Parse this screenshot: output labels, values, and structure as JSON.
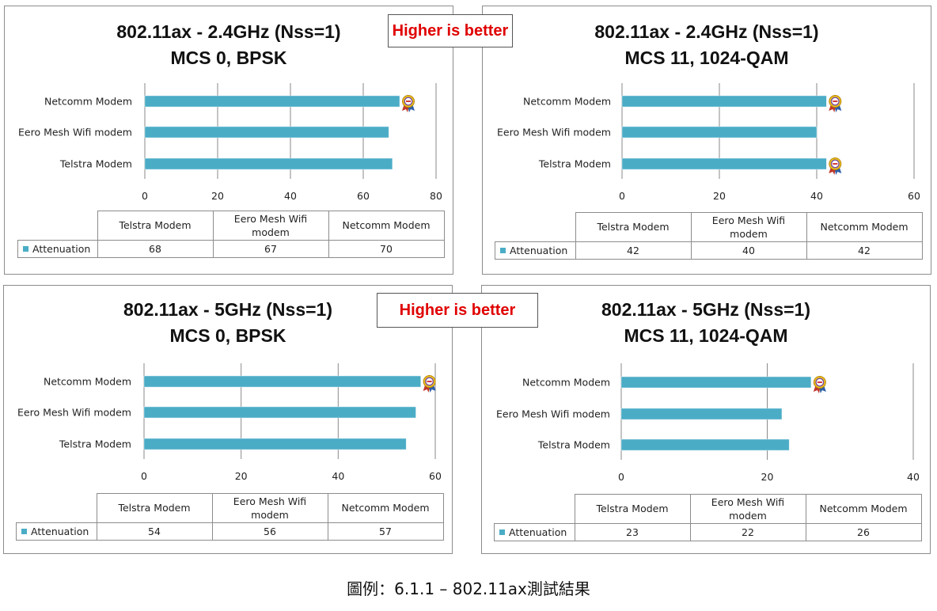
{
  "badge_text": "Higher is better",
  "caption": "圖例：6.1.1 – 802.11ax測試結果",
  "bar_color": "#4bacc6",
  "award_icon": "award-ribbon-icon",
  "chart_data": [
    {
      "type": "bar",
      "orientation": "horizontal",
      "title_line1": "802.11ax - 2.4GHz (Nss=1)",
      "title_line2": "MCS 0, BPSK",
      "categories": [
        "Telstra Modem",
        "Eero Mesh Wifi modem",
        "Netcomm Modem"
      ],
      "table_headers": [
        "Telstra Modem",
        "Eero Mesh Wifi modem",
        "Netcomm Modem"
      ],
      "series": [
        {
          "name": "Attenuation",
          "values": [
            68,
            67,
            70
          ]
        }
      ],
      "xlim": [
        0,
        80
      ],
      "ticks": [
        0,
        20,
        40,
        60,
        80
      ],
      "grid": true,
      "award_indices": [
        2
      ]
    },
    {
      "type": "bar",
      "orientation": "horizontal",
      "title_line1": "802.11ax - 2.4GHz (Nss=1)",
      "title_line2": "MCS 11, 1024-QAM",
      "categories": [
        "Telstra Modem",
        "Eero Mesh Wifi modem",
        "Netcomm Modem"
      ],
      "table_headers": [
        "Telstra Modem",
        "Eero Mesh Wifi modem",
        "Netcomm Modem"
      ],
      "series": [
        {
          "name": "Attenuation",
          "values": [
            42,
            40,
            42
          ]
        }
      ],
      "xlim": [
        0,
        60
      ],
      "ticks": [
        0,
        20,
        40,
        60
      ],
      "grid": true,
      "award_indices": [
        0,
        2
      ]
    },
    {
      "type": "bar",
      "orientation": "horizontal",
      "title_line1": "802.11ax - 5GHz (Nss=1)",
      "title_line2": "MCS 0, BPSK",
      "categories": [
        "Telstra Modem",
        "Eero Mesh Wifi modem",
        "Netcomm Modem"
      ],
      "table_headers": [
        "Telstra Modem",
        "Eero Mesh Wifi modem",
        "Netcomm Modem"
      ],
      "series": [
        {
          "name": "Attenuation",
          "values": [
            54,
            56,
            57
          ]
        }
      ],
      "xlim": [
        0,
        60
      ],
      "ticks": [
        0,
        20,
        40,
        60
      ],
      "grid": true,
      "award_indices": [
        2
      ]
    },
    {
      "type": "bar",
      "orientation": "horizontal",
      "title_line1": "802.11ax - 5GHz (Nss=1)",
      "title_line2": "MCS 11, 1024-QAM",
      "categories": [
        "Telstra Modem",
        "Eero Mesh Wifi modem",
        "Netcomm Modem"
      ],
      "table_headers": [
        "Telstra Modem",
        "Eero Mesh Wifi modem",
        "Netcomm Modem"
      ],
      "series": [
        {
          "name": "Attenuation",
          "values": [
            23,
            22,
            26
          ]
        }
      ],
      "xlim": [
        0,
        40
      ],
      "ticks": [
        0,
        20,
        40
      ],
      "grid": true,
      "award_indices": [
        2
      ]
    }
  ]
}
